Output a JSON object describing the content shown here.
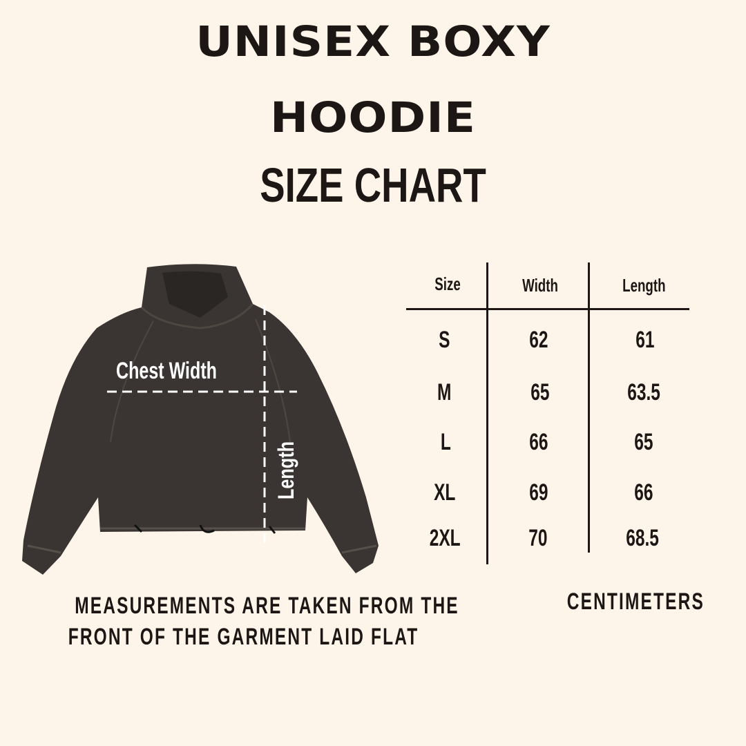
{
  "title": {
    "line1": "UNISEX BOXY",
    "line2": "HOODIE",
    "subtitle": "SIZE CHART"
  },
  "image": {
    "chest_label": "Chest Width",
    "length_label": "Length",
    "garment_color": "#3a3532"
  },
  "table": {
    "headers": [
      "Size",
      "Width",
      "Length"
    ],
    "rows": [
      {
        "size": "S",
        "width": "62",
        "length": "61"
      },
      {
        "size": "M",
        "width": "65",
        "length": "63.5"
      },
      {
        "size": "L",
        "width": "66",
        "length": "65"
      },
      {
        "size": "XL",
        "width": "69",
        "length": "66"
      },
      {
        "size": "2XL",
        "width": "70",
        "length": "68.5"
      }
    ],
    "unit": "CENTIMETERS"
  },
  "note": {
    "line1": "MEASUREMENTS ARE TAKEN FROM THE",
    "line2": "FRONT OF THE GARMENT LAID FLAT"
  },
  "colors": {
    "background": "#fef5ea",
    "text": "#1c1714"
  }
}
